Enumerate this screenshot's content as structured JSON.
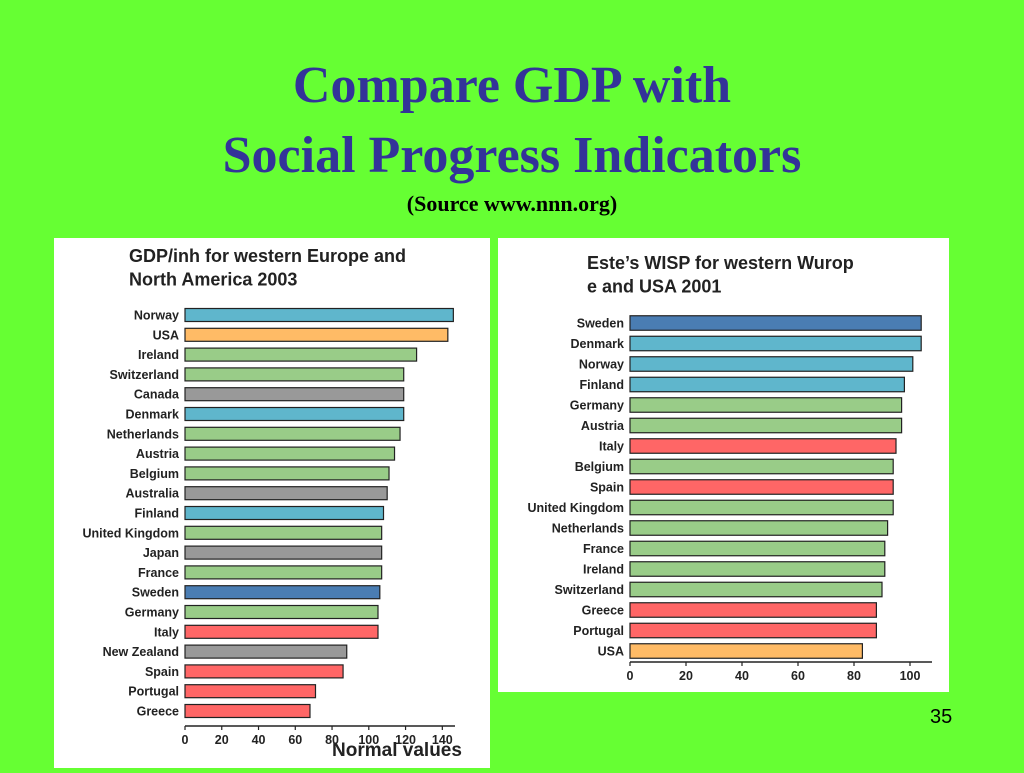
{
  "title_line1": "Compare GDP with",
  "title_line2": "Social Progress Indicators",
  "source": "(Source www.nnn.org)",
  "slide_number": "35",
  "colors": {
    "background": "#66ff33",
    "title": "#333399",
    "blue": "#5fb6cc",
    "dark_blue": "#4a7db3",
    "orange": "#ffbb66",
    "green": "#99cc88",
    "gray": "#999999",
    "red": "#ff6666"
  },
  "chart_data": [
    {
      "type": "bar",
      "orientation": "horizontal",
      "title": "GDP/inh for western Europe and North America 2003",
      "xlabel": "Normal values",
      "xlim": [
        0,
        150
      ],
      "xticks": [
        0,
        20,
        40,
        60,
        80,
        100,
        120,
        140
      ],
      "grid": false,
      "categories": [
        "Norway",
        "USA",
        "Ireland",
        "Switzerland",
        "Canada",
        "Denmark",
        "Netherlands",
        "Austria",
        "Belgium",
        "Australia",
        "Finland",
        "United Kingdom",
        "Japan",
        "France",
        "Sweden",
        "Germany",
        "Italy",
        "New Zealand",
        "Spain",
        "Portugal",
        "Greece"
      ],
      "values": [
        146,
        143,
        126,
        119,
        119,
        119,
        117,
        114,
        111,
        110,
        108,
        107,
        107,
        107,
        106,
        105,
        105,
        88,
        86,
        71,
        68
      ],
      "bar_colors": [
        "blue",
        "orange",
        "green",
        "green",
        "gray",
        "blue",
        "green",
        "green",
        "green",
        "gray",
        "blue",
        "green",
        "gray",
        "green",
        "dark_blue",
        "green",
        "red",
        "gray",
        "red",
        "red",
        "red"
      ]
    },
    {
      "type": "bar",
      "orientation": "horizontal",
      "title": "Este’s WISP for western Wurope and USA 2001",
      "xlabel": "",
      "xlim": [
        0,
        107
      ],
      "xticks": [
        0,
        20,
        40,
        60,
        80,
        100
      ],
      "grid": false,
      "categories": [
        "Sweden",
        "Denmark",
        "Norway",
        "Finland",
        "Germany",
        "Austria",
        "Italy",
        "Belgium",
        "Spain",
        "United Kingdom",
        "Netherlands",
        "France",
        "Ireland",
        "Switzerland",
        "Greece",
        "Portugal",
        "USA"
      ],
      "values": [
        104,
        104,
        101,
        98,
        97,
        97,
        95,
        94,
        94,
        94,
        92,
        91,
        91,
        90,
        88,
        88,
        83
      ],
      "bar_colors": [
        "dark_blue",
        "blue",
        "blue",
        "blue",
        "green",
        "green",
        "red",
        "green",
        "red",
        "green",
        "green",
        "green",
        "green",
        "green",
        "red",
        "red",
        "orange"
      ]
    }
  ]
}
